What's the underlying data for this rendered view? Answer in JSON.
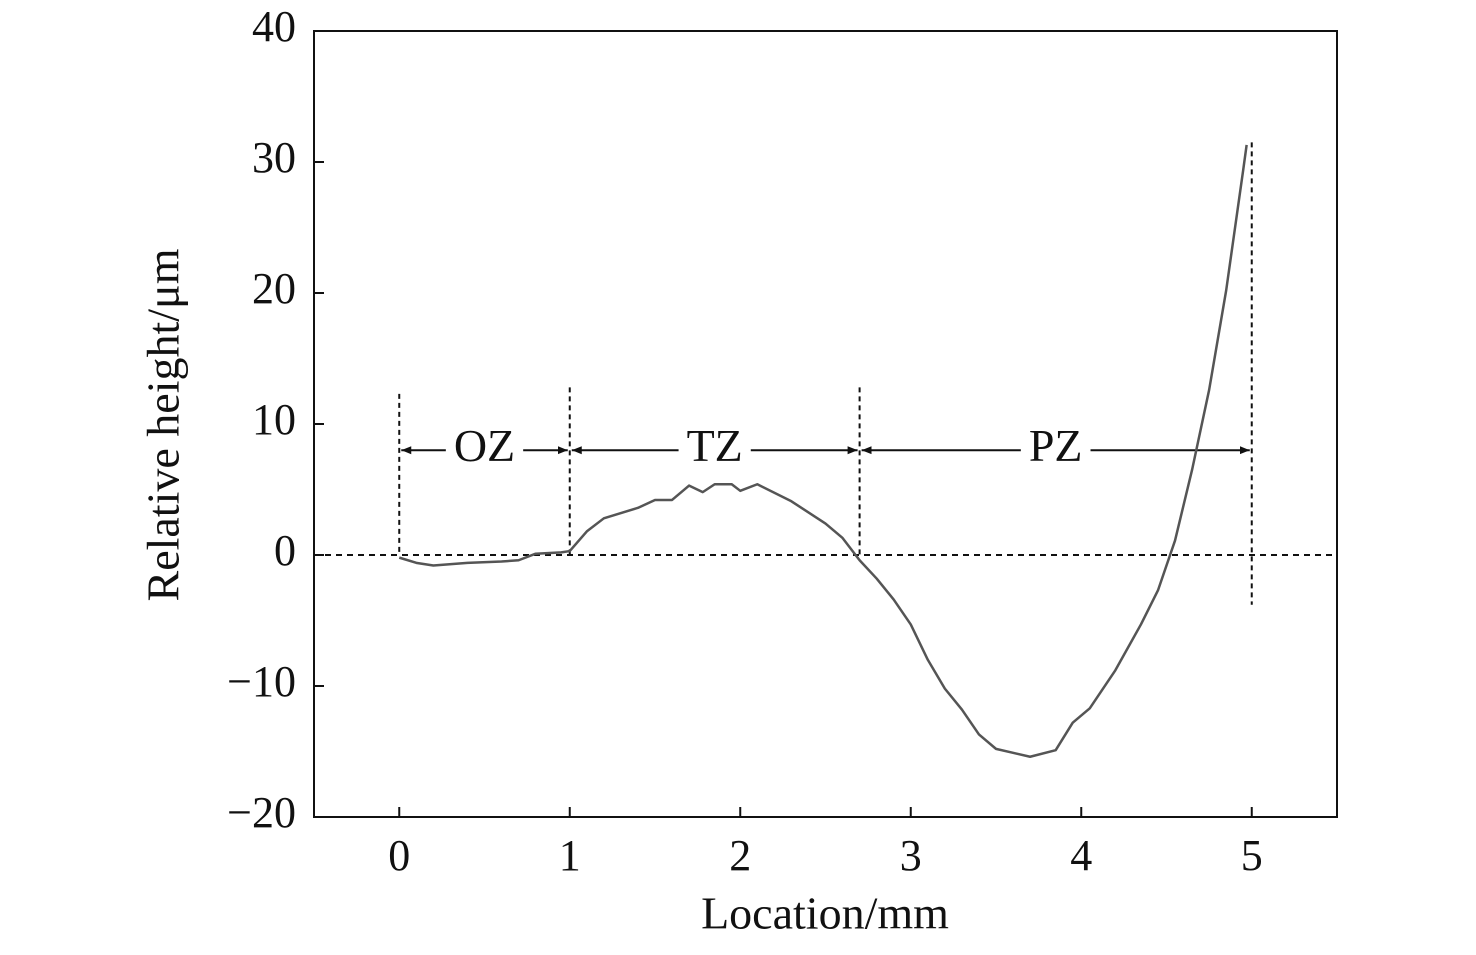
{
  "chart_data": {
    "type": "line",
    "x_label": "Location/mm",
    "y_label": "Relative height/μm",
    "x": [
      0,
      0.1,
      0.2,
      0.4,
      0.6,
      0.7,
      0.8,
      0.95,
      1.0,
      1.1,
      1.2,
      1.4,
      1.5,
      1.6,
      1.7,
      1.78,
      1.85,
      1.95,
      2.0,
      2.1,
      2.3,
      2.5,
      2.6,
      2.7,
      2.8,
      2.9,
      3.0,
      3.1,
      3.2,
      3.3,
      3.4,
      3.5,
      3.6,
      3.7,
      3.85,
      3.95,
      4.05,
      4.2,
      4.35,
      4.45,
      4.55,
      4.65,
      4.75,
      4.85,
      4.95,
      4.97
    ],
    "series": [
      {
        "color": "#555555",
        "values": [
          -0.2,
          -0.6,
          -0.8,
          -0.6,
          -0.5,
          -0.4,
          0.1,
          0.2,
          0.3,
          1.8,
          2.8,
          3.6,
          4.2,
          4.2,
          5.3,
          4.8,
          5.4,
          5.4,
          4.9,
          5.4,
          4.1,
          2.4,
          1.3,
          -0.4,
          -1.8,
          -3.4,
          -5.3,
          -8.0,
          -10.2,
          -11.8,
          -13.7,
          -14.8,
          -15.1,
          -15.4,
          -14.9,
          -12.8,
          -11.7,
          -8.8,
          -5.3,
          -2.7,
          1.1,
          6.5,
          12.6,
          20.2,
          29.4,
          31.3
        ]
      }
    ],
    "xlim": [
      -0.5,
      5.5
    ],
    "ylim": [
      -20,
      40
    ],
    "xticks": [
      0,
      1,
      2,
      3,
      4,
      5
    ],
    "yticks": [
      {
        "value": -20,
        "label": "−20"
      },
      {
        "value": -10,
        "label": "−10"
      },
      0,
      10,
      20,
      30,
      40
    ],
    "reference_line": 0,
    "dividers": [
      {
        "x": 0,
        "top": 12.3,
        "bottom": 0
      },
      {
        "x": 1,
        "top": 12.8,
        "bottom": 0
      },
      {
        "x": 2.7,
        "top": 12.8,
        "bottom": 0
      },
      {
        "x": 5,
        "top": 31.5,
        "bottom": -3.8
      }
    ],
    "arrow_y": 8,
    "zones": [
      {
        "label": "OZ",
        "start": 0,
        "end": 1
      },
      {
        "label": "TZ",
        "start": 1,
        "end": 2.7
      },
      {
        "label": "PZ",
        "start": 2.7,
        "end": 5
      }
    ]
  }
}
